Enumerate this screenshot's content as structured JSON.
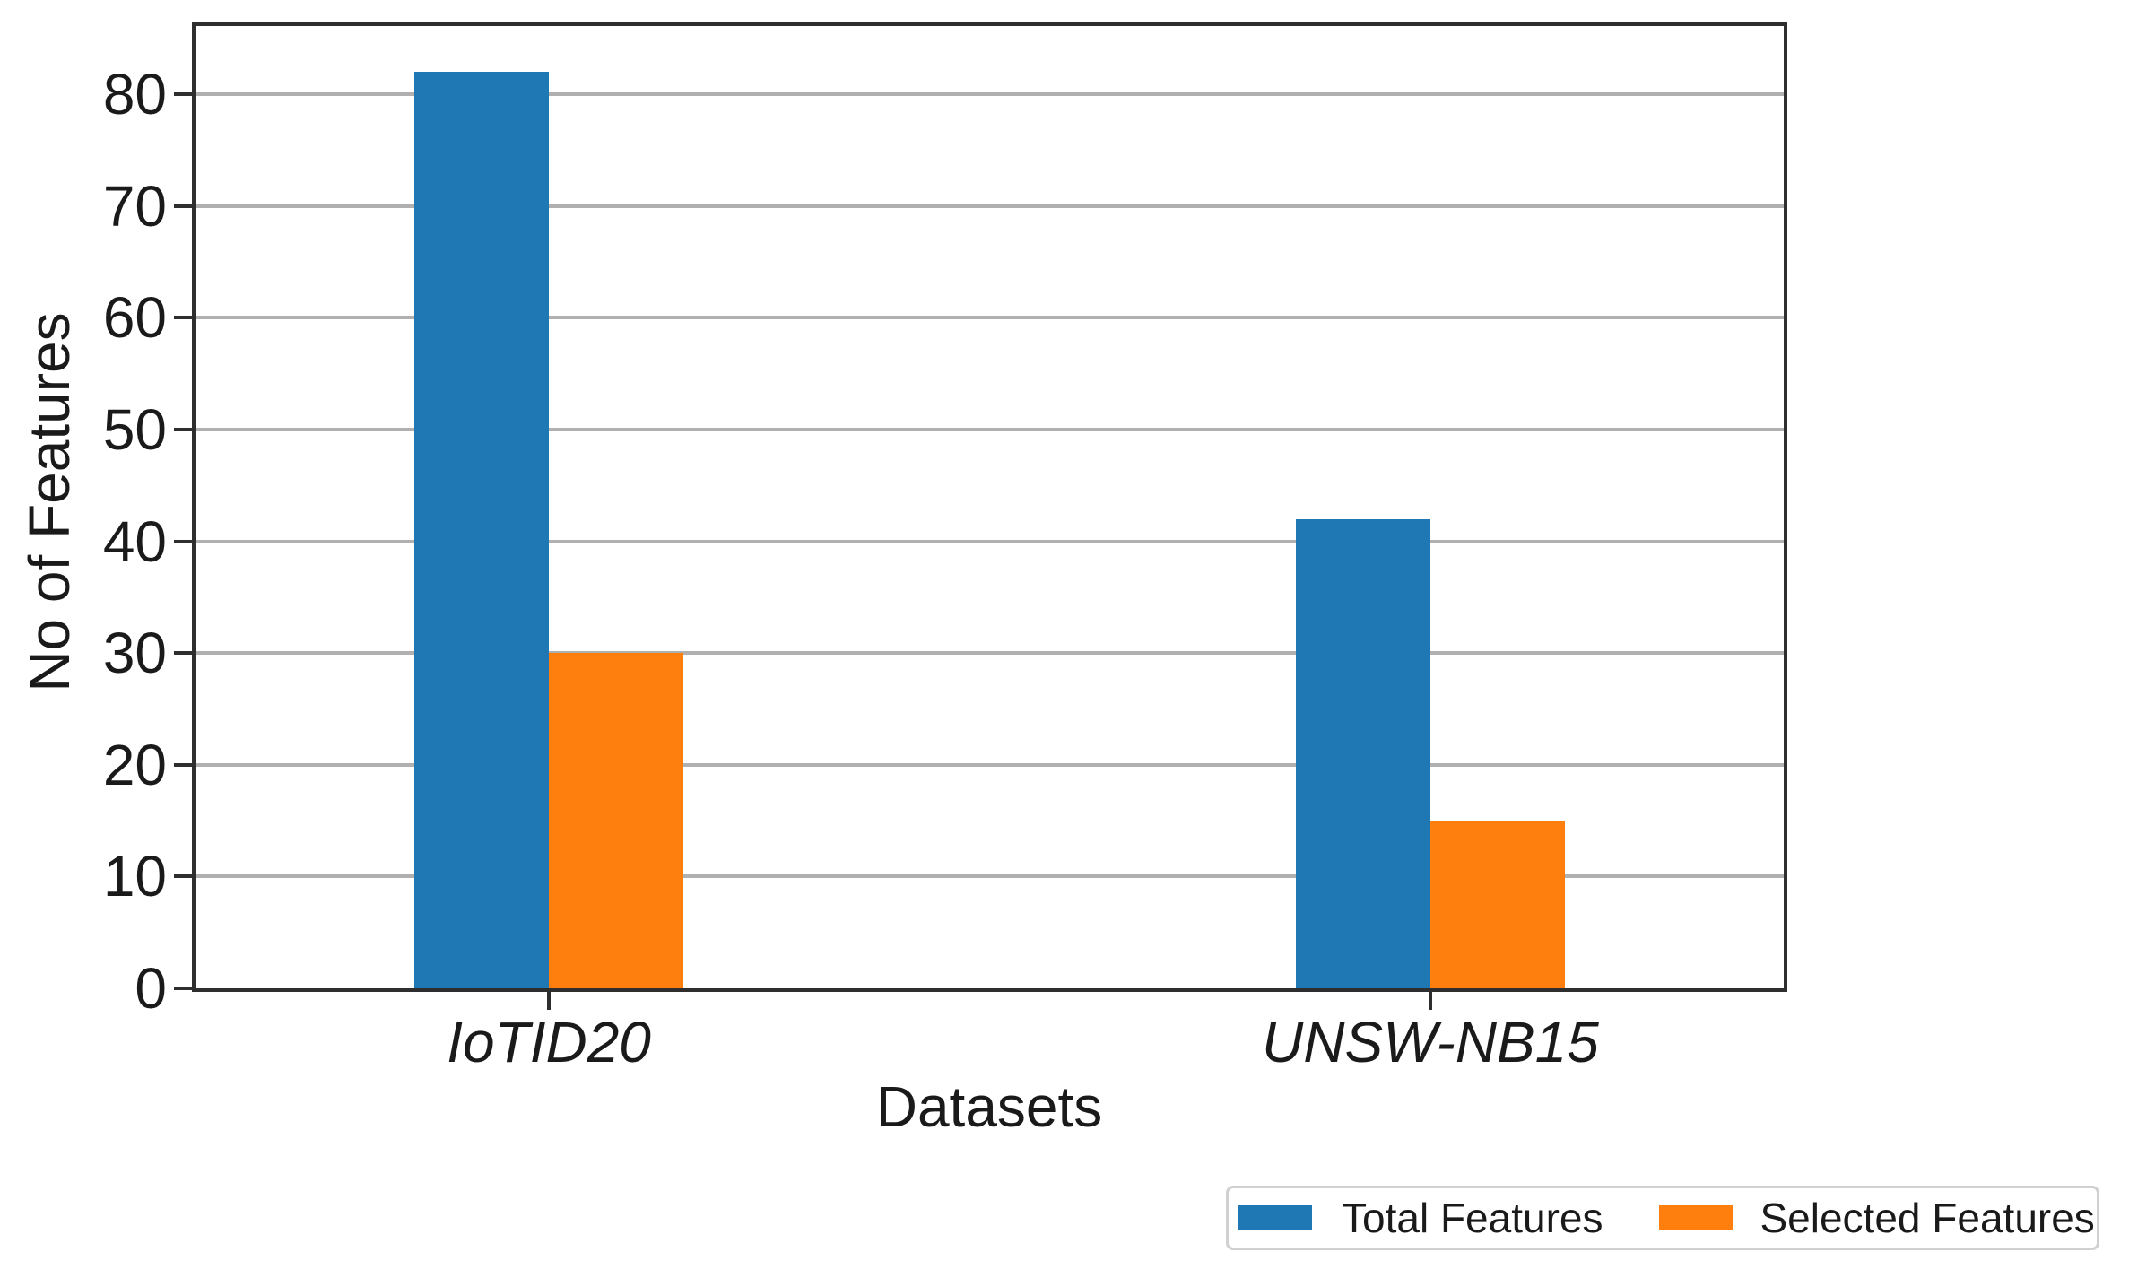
{
  "chart_data": {
    "type": "bar",
    "title": "",
    "categories": [
      "IoTID20",
      "UNSW-NB15"
    ],
    "series": [
      {
        "name": "Total Features",
        "color": "#1f77b4",
        "values": [
          82,
          42
        ]
      },
      {
        "name": "Selected Features",
        "color": "#ff7f0e",
        "values": [
          30,
          15
        ]
      }
    ],
    "xlabel": "Datasets",
    "ylabel": "No of Features",
    "yticks": [
      0,
      10,
      20,
      30,
      40,
      50,
      60,
      70,
      80
    ],
    "ylim": [
      0,
      86.1
    ],
    "grid": "horizontal",
    "grid_color": "#b0b0b0",
    "spine_color": "#2e2e2e",
    "x_tick_style": "italic",
    "legend": {
      "position": "bottom-right-outside",
      "entries": [
        {
          "label": "Total Features",
          "color": "#1f77b4"
        },
        {
          "label": "Selected Features",
          "color": "#ff7f0e"
        }
      ]
    }
  }
}
